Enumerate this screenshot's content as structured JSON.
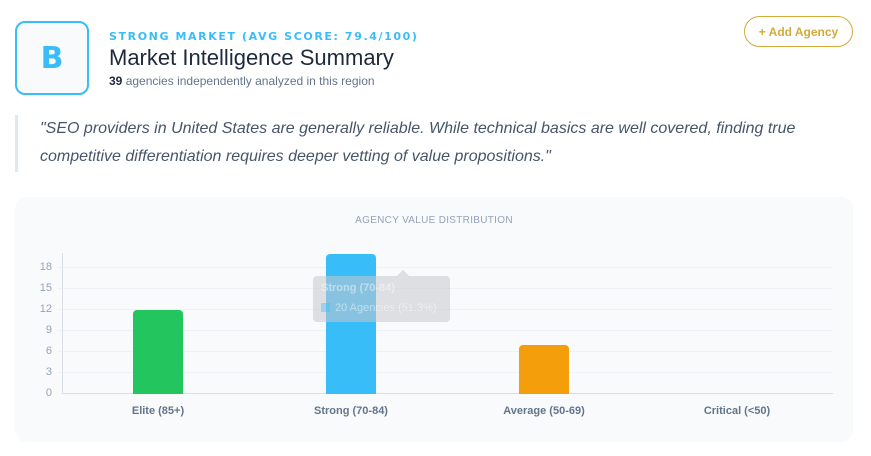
{
  "header": {
    "grade": "B",
    "eyebrow": "STRONG MARKET (AVG SCORE: 79.4/100)",
    "title": "Market Intelligence Summary",
    "agency_count": "39",
    "subtitle_rest": " agencies independently analyzed in this region",
    "add_button_label": "+ Add Agency"
  },
  "quote": "\"SEO providers in United States are generally reliable. While technical basics are well covered, finding true competitive differentiation requires deeper vetting of value propositions.\"",
  "colors": {
    "accent": "#38bdf8",
    "gold": "#d4aa38",
    "elite": "#22c55e",
    "strong": "#38bdf8",
    "average": "#f59e0b",
    "critical": "#ef4444"
  },
  "tooltip": {
    "title": "Strong (70-84)",
    "value": "20 Agencies (51.3%)"
  },
  "chart_data": {
    "type": "bar",
    "title": "AGENCY VALUE DISTRIBUTION",
    "categories": [
      "Elite (85+)",
      "Strong (70-84)",
      "Average (50-69)",
      "Critical (<50)"
    ],
    "values": [
      12,
      20,
      7,
      0
    ],
    "colors": [
      "#22c55e",
      "#38bdf8",
      "#f59e0b",
      "#ef4444"
    ],
    "yticks": [
      "0",
      "3",
      "6",
      "9",
      "12",
      "15",
      "18"
    ],
    "ylim": [
      0,
      20
    ],
    "xlabel": "",
    "ylabel": "",
    "grid": true,
    "legend": "none"
  }
}
